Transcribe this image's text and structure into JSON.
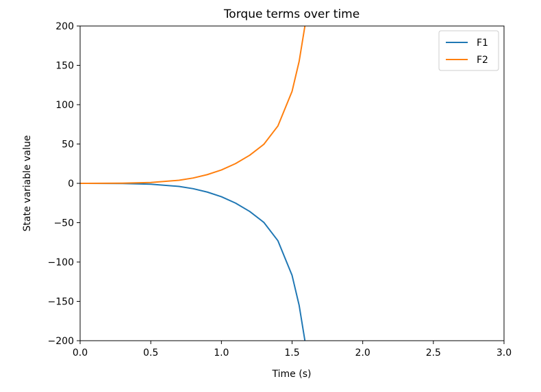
{
  "chart_data": {
    "type": "line",
    "title": "Torque terms over time",
    "xlabel": "Time (s)",
    "ylabel": "State variable value",
    "xlim": [
      0.0,
      3.0
    ],
    "ylim": [
      -200,
      200
    ],
    "xticks": [
      0.0,
      0.5,
      1.0,
      1.5,
      2.0,
      2.5,
      3.0
    ],
    "xtick_labels": [
      "0.0",
      "0.5",
      "1.0",
      "1.5",
      "2.0",
      "2.5",
      "3.0"
    ],
    "yticks": [
      200,
      150,
      100,
      50,
      0,
      -50,
      -100,
      -150,
      -200
    ],
    "ytick_labels": [
      "200",
      "150",
      "100",
      "50",
      "0",
      "−50",
      "−100",
      "−150",
      "−200"
    ],
    "grid": false,
    "legend_position": "top-right",
    "series": [
      {
        "name": "F1",
        "color": "#1f77b4",
        "x": [
          0.0,
          0.3,
          0.5,
          0.7,
          0.8,
          0.9,
          1.0,
          1.1,
          1.2,
          1.3,
          1.4,
          1.5,
          1.55,
          1.6
        ],
        "y": [
          0,
          -0.2,
          -1.1,
          -3.9,
          -6.8,
          -11.1,
          -17,
          -25.1,
          -35.7,
          -49.6,
          -73,
          -117,
          -155,
          -210
        ]
      },
      {
        "name": "F2",
        "color": "#ff7f0e",
        "x": [
          0.0,
          0.3,
          0.5,
          0.7,
          0.8,
          0.9,
          1.0,
          1.1,
          1.2,
          1.3,
          1.4,
          1.5,
          1.55,
          1.6
        ],
        "y": [
          0,
          0.2,
          1.1,
          3.9,
          6.8,
          11.1,
          17,
          25.1,
          35.7,
          49.6,
          73,
          117,
          155,
          210
        ]
      }
    ]
  }
}
